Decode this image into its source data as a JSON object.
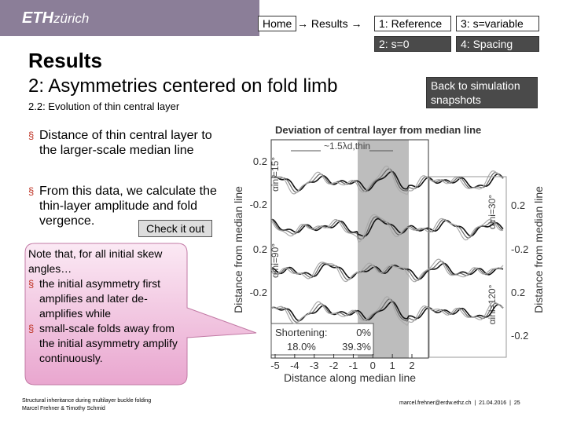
{
  "header": {
    "logo": "ETH",
    "logo_sub": "zürich"
  },
  "nav": {
    "home": "Home",
    "crumb": "→ Results →",
    "buttons": [
      "1: Reference",
      "3: s=variable",
      "2: s=0",
      "4: Spacing"
    ],
    "back": "Back to simulation snapshots"
  },
  "slide": {
    "title": "Results",
    "subtitle": "2: Asymmetries centered on fold limb",
    "section": "2.2:  Evolution of thin central layer",
    "bullets": [
      "Distance of thin central layer to the larger-scale median line",
      "From this data, we calculate the thin-layer amplitude and fold vergence."
    ],
    "button": "Check it out",
    "callout": {
      "intro": "Note that, for all initial skew angles…",
      "items": [
        "the initial asymmetry first amplifies and later de-amplifies while",
        "small-scale folds away from the initial asymmetry amplify continuously."
      ]
    }
  },
  "figure": {
    "title": "Deviation of central layer from median line",
    "annotation": "~1.5λd,thin",
    "xlabel": "Distance along median line",
    "ylabel_left": "Distance from median line",
    "ylabel_right": "Distance from median line",
    "xticks": [
      -5,
      -4,
      -3,
      -2,
      -1,
      0,
      1,
      2
    ],
    "left_ticks": [
      0.2,
      -0.2,
      0.2,
      -0.2
    ],
    "right_ticks": [
      0.2,
      -0.2,
      0.2,
      -0.2
    ],
    "angles": [
      "αini=15°",
      "αini=30°",
      "αini=90°",
      "αini=120°"
    ],
    "legend": {
      "title": "Shortening:",
      "items": [
        "0%",
        "18.0%",
        "39.3%"
      ]
    }
  },
  "footer": {
    "left": [
      "Structural inheritance during multilayer buckle folding",
      "Marcel Frehner & Timothy Schmid"
    ],
    "right": [
      "marcel.frehner@erdw.ethz.ch",
      "21.04.2016",
      "25"
    ]
  }
}
